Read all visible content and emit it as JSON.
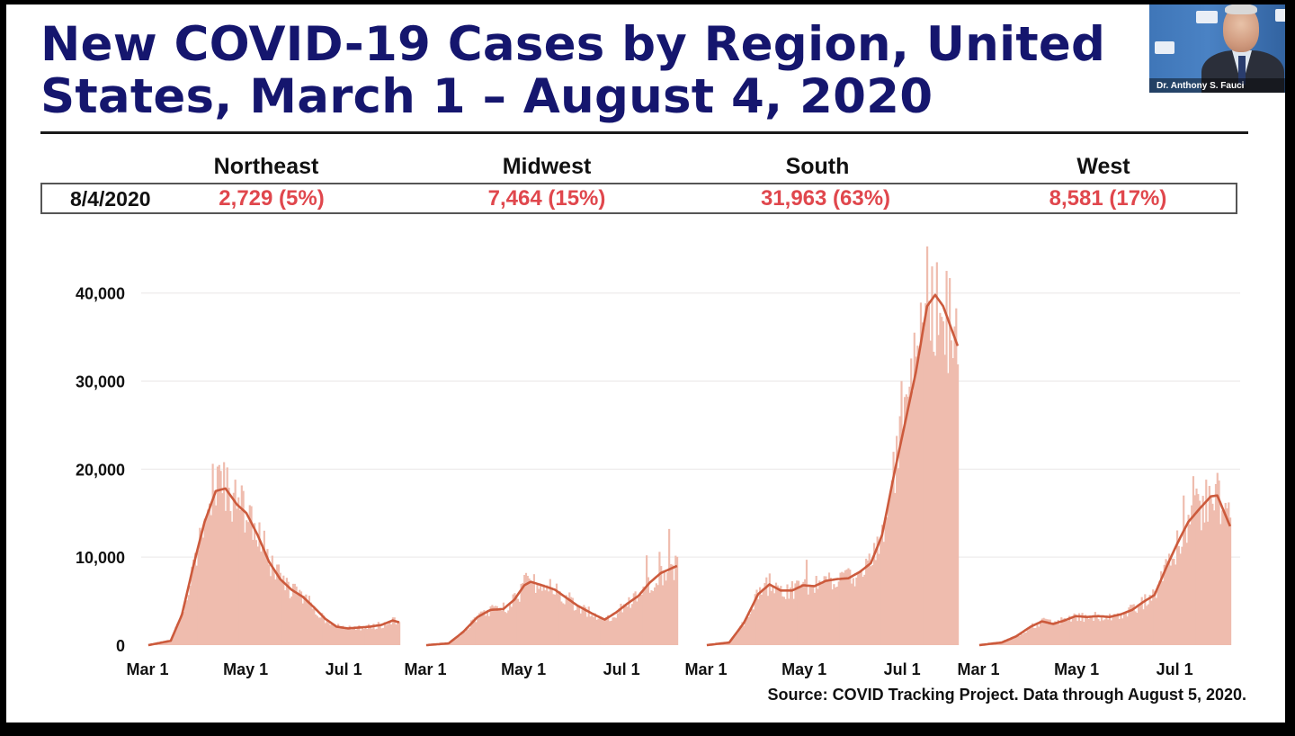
{
  "slide": {
    "title_line1": "New COVID-19 Cases by Region, United",
    "title_line2": "States, March 1 – August 4, 2020",
    "source": "Source: COVID Tracking Project. Data through August 5, 2020."
  },
  "summary": {
    "date_label": "8/4/2020",
    "regions": [
      {
        "name": "Northeast",
        "value": "2,729 (5%)"
      },
      {
        "name": "Midwest",
        "value": "7,464 (15%)"
      },
      {
        "name": "South",
        "value": "31,963 (63%)"
      },
      {
        "name": "West",
        "value": "8,581 (17%)"
      }
    ]
  },
  "webcam": {
    "name": "Dr. Anthony S. Fauci"
  },
  "colors": {
    "title": "#15166e",
    "highlight": "#e0474d",
    "daily_bar": "#efbcae",
    "average_line": "#cc5a3c"
  },
  "chart_data": {
    "type": "bar",
    "ylim": [
      0,
      46000
    ],
    "yticks": [
      0,
      10000,
      20000,
      30000,
      40000
    ],
    "ytick_labels": [
      "0",
      "10,000",
      "20,000",
      "30,000",
      "40,000"
    ],
    "xtick_labels": [
      "Mar 1",
      "May 1",
      "Jul 1"
    ],
    "x_start": "2020-03-01",
    "x_end": "2020-08-04",
    "xticks": [
      "2020-03-01",
      "2020-05-01",
      "2020-07-01"
    ],
    "grid": true,
    "panels": [
      {
        "name": "Northeast",
        "avg_keypoints": [
          [
            "2020-03-01",
            0
          ],
          [
            "2020-03-15",
            500
          ],
          [
            "2020-03-22",
            3500
          ],
          [
            "2020-03-29",
            9000
          ],
          [
            "2020-04-05",
            14000
          ],
          [
            "2020-04-12",
            17500
          ],
          [
            "2020-04-18",
            17800
          ],
          [
            "2020-04-25",
            16000
          ],
          [
            "2020-05-01",
            15000
          ],
          [
            "2020-05-08",
            12500
          ],
          [
            "2020-05-15",
            9500
          ],
          [
            "2020-05-22",
            7500
          ],
          [
            "2020-05-29",
            6300
          ],
          [
            "2020-06-05",
            5500
          ],
          [
            "2020-06-12",
            4300
          ],
          [
            "2020-06-19",
            3000
          ],
          [
            "2020-06-26",
            2100
          ],
          [
            "2020-07-03",
            1900
          ],
          [
            "2020-07-10",
            2000
          ],
          [
            "2020-07-17",
            2100
          ],
          [
            "2020-07-24",
            2300
          ],
          [
            "2020-07-31",
            2800
          ],
          [
            "2020-08-04",
            2600
          ]
        ],
        "daily_spikes": [
          [
            "2020-04-10",
            20600
          ],
          [
            "2020-04-15",
            19800
          ],
          [
            "2020-04-24",
            18800
          ],
          [
            "2020-05-03",
            15900
          ],
          [
            "2020-05-12",
            13000
          ]
        ]
      },
      {
        "name": "Midwest",
        "avg_keypoints": [
          [
            "2020-03-01",
            0
          ],
          [
            "2020-03-15",
            200
          ],
          [
            "2020-03-24",
            1500
          ],
          [
            "2020-04-02",
            3200
          ],
          [
            "2020-04-10",
            4000
          ],
          [
            "2020-04-18",
            4100
          ],
          [
            "2020-04-25",
            5200
          ],
          [
            "2020-05-01",
            6800
          ],
          [
            "2020-05-05",
            7200
          ],
          [
            "2020-05-12",
            6800
          ],
          [
            "2020-05-20",
            6300
          ],
          [
            "2020-05-27",
            5400
          ],
          [
            "2020-06-03",
            4500
          ],
          [
            "2020-06-12",
            3600
          ],
          [
            "2020-06-20",
            2900
          ],
          [
            "2020-06-27",
            3700
          ],
          [
            "2020-07-04",
            4700
          ],
          [
            "2020-07-11",
            5600
          ],
          [
            "2020-07-18",
            7100
          ],
          [
            "2020-07-25",
            8200
          ],
          [
            "2020-08-04",
            9000
          ]
        ],
        "daily_spikes": [
          [
            "2020-05-02",
            8200
          ],
          [
            "2020-07-16",
            10200
          ],
          [
            "2020-07-24",
            10600
          ],
          [
            "2020-07-30",
            13200
          ]
        ]
      },
      {
        "name": "South",
        "avg_keypoints": [
          [
            "2020-03-01",
            0
          ],
          [
            "2020-03-15",
            300
          ],
          [
            "2020-03-24",
            2500
          ],
          [
            "2020-04-02",
            5800
          ],
          [
            "2020-04-09",
            6900
          ],
          [
            "2020-04-16",
            6200
          ],
          [
            "2020-04-23",
            6200
          ],
          [
            "2020-04-30",
            6800
          ],
          [
            "2020-05-07",
            6700
          ],
          [
            "2020-05-14",
            7300
          ],
          [
            "2020-05-21",
            7500
          ],
          [
            "2020-05-28",
            7600
          ],
          [
            "2020-06-04",
            8300
          ],
          [
            "2020-06-11",
            9300
          ],
          [
            "2020-06-18",
            12500
          ],
          [
            "2020-06-25",
            19000
          ],
          [
            "2020-07-02",
            25000
          ],
          [
            "2020-07-09",
            31000
          ],
          [
            "2020-07-16",
            38500
          ],
          [
            "2020-07-21",
            39800
          ],
          [
            "2020-07-26",
            38500
          ],
          [
            "2020-08-04",
            34000
          ]
        ],
        "daily_spikes": [
          [
            "2020-05-02",
            9700
          ],
          [
            "2020-06-30",
            30000
          ],
          [
            "2020-07-08",
            35500
          ],
          [
            "2020-07-16",
            45300
          ],
          [
            "2020-07-22",
            43500
          ],
          [
            "2020-07-30",
            41700
          ],
          [
            "2020-08-04",
            31900
          ]
        ]
      },
      {
        "name": "West",
        "avg_keypoints": [
          [
            "2020-03-01",
            0
          ],
          [
            "2020-03-15",
            300
          ],
          [
            "2020-03-24",
            1000
          ],
          [
            "2020-04-02",
            2100
          ],
          [
            "2020-04-09",
            2700
          ],
          [
            "2020-04-16",
            2400
          ],
          [
            "2020-04-23",
            2800
          ],
          [
            "2020-04-30",
            3300
          ],
          [
            "2020-05-07",
            3200
          ],
          [
            "2020-05-14",
            3300
          ],
          [
            "2020-05-21",
            3200
          ],
          [
            "2020-05-28",
            3500
          ],
          [
            "2020-06-04",
            4000
          ],
          [
            "2020-06-11",
            4900
          ],
          [
            "2020-06-18",
            5700
          ],
          [
            "2020-06-25",
            8700
          ],
          [
            "2020-07-02",
            11500
          ],
          [
            "2020-07-09",
            14000
          ],
          [
            "2020-07-16",
            15500
          ],
          [
            "2020-07-23",
            16900
          ],
          [
            "2020-07-27",
            17000
          ],
          [
            "2020-08-04",
            13500
          ]
        ],
        "daily_spikes": [
          [
            "2020-07-06",
            17000
          ],
          [
            "2020-07-12",
            19200
          ],
          [
            "2020-07-20",
            18800
          ],
          [
            "2020-07-26",
            18300
          ]
        ]
      }
    ]
  }
}
